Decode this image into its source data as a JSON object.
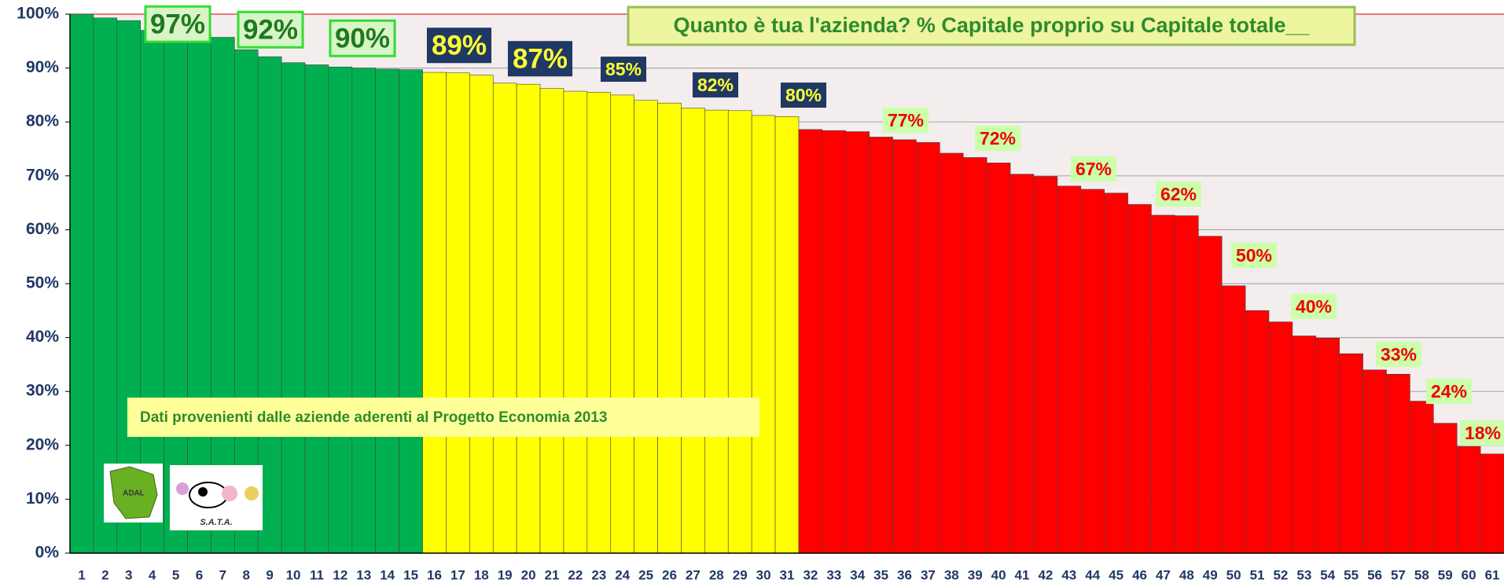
{
  "chart_data": {
    "type": "bar",
    "title": "Quanto è tua l'azienda? % Capitale proprio  su Capitale totale__",
    "note": "Dati  provenienti dalle aziende aderenti al Progetto Economia 2013",
    "logos": [
      "ADAL",
      "S.A.T.A."
    ],
    "categories": [
      "1",
      "2",
      "3",
      "4",
      "5",
      "6",
      "7",
      "8",
      "9",
      "10",
      "11",
      "12",
      "13",
      "14",
      "15",
      "16",
      "17",
      "18",
      "19",
      "20",
      "21",
      "22",
      "23",
      "24",
      "25",
      "26",
      "27",
      "28",
      "29",
      "30",
      "31",
      "32",
      "33",
      "34",
      "35",
      "36",
      "37",
      "38",
      "39",
      "40",
      "41",
      "42",
      "43",
      "44",
      "45",
      "46",
      "47",
      "48",
      "49",
      "50",
      "51",
      "52",
      "53",
      "54",
      "55",
      "56",
      "57",
      "58",
      "59",
      "60",
      "61"
    ],
    "values": [
      100,
      99.3,
      98.8,
      97,
      96.8,
      96.5,
      95.7,
      93.4,
      92.1,
      91,
      90.6,
      90.2,
      90,
      89.8,
      89.7,
      89.2,
      89.1,
      88.7,
      87.2,
      87,
      86.2,
      85.7,
      85.5,
      85,
      84,
      83.5,
      82.6,
      82.2,
      82.1,
      81.2,
      81,
      78.6,
      78.4,
      78.2,
      77.2,
      76.7,
      76.2,
      74.2,
      73.4,
      72.4,
      70.3,
      69.9,
      68.1,
      67.5,
      66.8,
      64.7,
      62.7,
      62.6,
      58.8,
      49.6,
      45,
      42.9,
      40.3,
      39.9,
      37,
      34,
      33.2,
      28.2,
      24.1,
      19.8,
      18.4
    ],
    "colors": [
      "#00b050",
      "#00b050",
      "#00b050",
      "#00b050",
      "#00b050",
      "#00b050",
      "#00b050",
      "#00b050",
      "#00b050",
      "#00b050",
      "#00b050",
      "#00b050",
      "#00b050",
      "#00b050",
      "#00b050",
      "#ffff00",
      "#ffff00",
      "#ffff00",
      "#ffff00",
      "#ffff00",
      "#ffff00",
      "#ffff00",
      "#ffff00",
      "#ffff00",
      "#ffff00",
      "#ffff00",
      "#ffff00",
      "#ffff00",
      "#ffff00",
      "#ffff00",
      "#ffff00",
      "#ff0000",
      "#ff0000",
      "#ff0000",
      "#ff0000",
      "#ff0000",
      "#ff0000",
      "#ff0000",
      "#ff0000",
      "#ff0000",
      "#ff0000",
      "#ff0000",
      "#ff0000",
      "#ff0000",
      "#ff0000",
      "#ff0000",
      "#ff0000",
      "#ff0000",
      "#ff0000",
      "#ff0000",
      "#ff0000",
      "#ff0000",
      "#ff0000",
      "#ff0000",
      "#ff0000",
      "#ff0000",
      "#ff0000",
      "#ff0000",
      "#ff0000",
      "#ff0000",
      "#ff0000"
    ],
    "annotations": [
      "97%",
      "92%",
      "90%",
      "89%",
      "87%",
      "85%",
      "82%",
      "80%",
      "77%",
      "72%",
      "67%",
      "62%",
      "50%",
      "40%",
      "33%",
      "24%",
      "18%"
    ],
    "ylim": [
      0,
      100
    ],
    "yticks": [
      {
        "value": 0,
        "label": "0%"
      },
      {
        "value": 10,
        "label": "10%"
      },
      {
        "value": 20,
        "label": "20%"
      },
      {
        "value": 30,
        "label": "30%"
      },
      {
        "value": 40,
        "label": "40%"
      },
      {
        "value": 50,
        "label": "50%"
      },
      {
        "value": 60,
        "label": "60%"
      },
      {
        "value": 70,
        "label": "70%"
      },
      {
        "value": 80,
        "label": "80%"
      },
      {
        "value": 90,
        "label": "90%"
      },
      {
        "value": 100,
        "label": "100%"
      }
    ],
    "grid": true
  }
}
